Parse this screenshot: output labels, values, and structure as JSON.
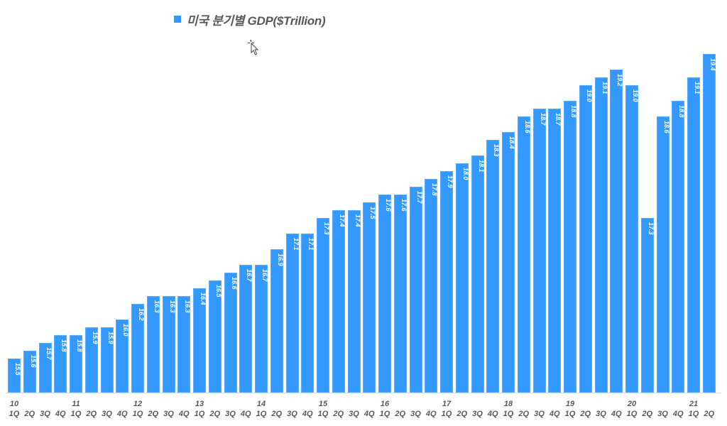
{
  "chart_data": {
    "type": "bar",
    "title": "미국 분기별 GDP($Trillion)",
    "legend": [
      {
        "name": "미국 분기별 GDP($Trillion)",
        "color": "#3399ff"
      }
    ],
    "legend_position": "top",
    "xlabel": "",
    "ylabel": "",
    "grid": false,
    "y_axis_visible": false,
    "ylim": [
      15.06,
      19.4
    ],
    "year_labels": [
      {
        "label": "10",
        "index": 0
      },
      {
        "label": "11",
        "index": 4
      },
      {
        "label": "12",
        "index": 8
      },
      {
        "label": "13",
        "index": 12
      },
      {
        "label": "14",
        "index": 16
      },
      {
        "label": "15",
        "index": 20
      },
      {
        "label": "16",
        "index": 24
      },
      {
        "label": "17",
        "index": 28
      },
      {
        "label": "18",
        "index": 32
      },
      {
        "label": "19",
        "index": 36
      },
      {
        "label": "20",
        "index": 40
      },
      {
        "label": "21",
        "index": 44
      }
    ],
    "categories": [
      "1Q",
      "2Q",
      "3Q",
      "4Q",
      "1Q",
      "2Q",
      "3Q",
      "4Q",
      "1Q",
      "2Q",
      "3Q",
      "4Q",
      "1Q",
      "2Q",
      "3Q",
      "4Q",
      "1Q",
      "2Q",
      "3Q",
      "4Q",
      "1Q",
      "2Q",
      "3Q",
      "4Q",
      "1Q",
      "2Q",
      "3Q",
      "4Q",
      "1Q",
      "2Q",
      "3Q",
      "4Q",
      "1Q",
      "2Q",
      "3Q",
      "4Q",
      "1Q",
      "2Q",
      "3Q",
      "4Q",
      "1Q",
      "2Q",
      "3Q",
      "4Q",
      "1Q",
      "2Q"
    ],
    "series": [
      {
        "name": "미국 분기별 GDP($Trillion)",
        "color": "#3399ff",
        "values": [
          15.5,
          15.6,
          15.7,
          15.8,
          15.8,
          15.9,
          15.9,
          16.0,
          16.2,
          16.3,
          16.3,
          16.3,
          16.4,
          16.5,
          16.6,
          16.7,
          16.7,
          16.9,
          17.1,
          17.1,
          17.3,
          17.4,
          17.4,
          17.5,
          17.6,
          17.6,
          17.7,
          17.8,
          17.9,
          18.0,
          18.1,
          18.3,
          18.4,
          18.6,
          18.7,
          18.7,
          18.8,
          19.0,
          19.1,
          19.2,
          19.0,
          17.3,
          18.6,
          18.8,
          19.1,
          19.4
        ],
        "labels": [
          "15.5",
          "15.6",
          "15.7",
          "15.8",
          "15.8",
          "15.9",
          "15.9",
          "16.0",
          "16.2",
          "16.3",
          "16.3",
          "16.3",
          "16.4",
          "16.5",
          "16.6",
          "16.7",
          "16.7",
          "16.9",
          "17.1",
          "17.1",
          "17.3",
          "17.4",
          "17.4",
          "17.5",
          "17.6",
          "17.6",
          "17.7",
          "17.8",
          "17.9",
          "18.0",
          "18.1",
          "18.3",
          "18.4",
          "18.6",
          "18.7",
          "18.7",
          "18.8",
          "19.0",
          "19.1",
          "19.2",
          "19.0",
          "17.3",
          "18.6",
          "18.8",
          "19.1",
          "19.4"
        ]
      }
    ]
  },
  "legend": {
    "label": "미국 분기별 GDP($Trillion)"
  },
  "cursor": {
    "icon": "move-cursor-icon"
  }
}
